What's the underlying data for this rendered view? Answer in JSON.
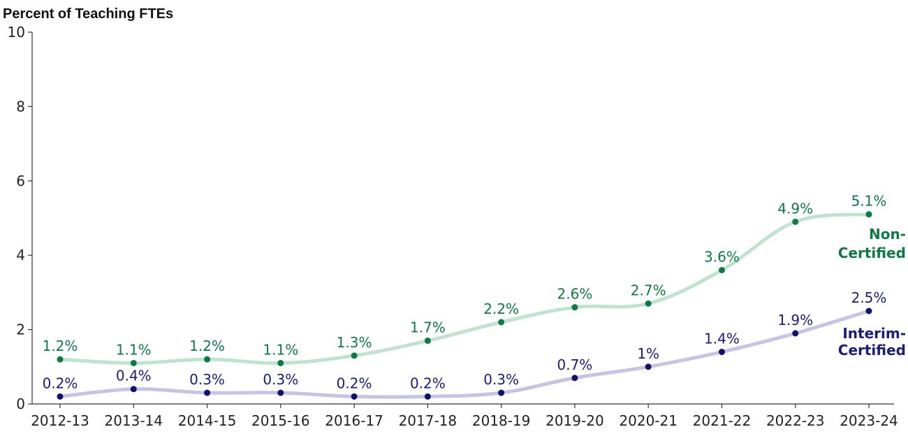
{
  "chart_data": {
    "type": "line",
    "title": "Percent of Teaching FTEs",
    "categories": [
      "2012-13",
      "2013-14",
      "2014-15",
      "2015-16",
      "2016-17",
      "2017-18",
      "2018-19",
      "2019-20",
      "2020-21",
      "2021-22",
      "2022-23",
      "2023-24"
    ],
    "ylim": [
      0,
      10
    ],
    "yticks": [
      "0",
      "2",
      "4",
      "6",
      "8",
      "10"
    ],
    "grid": false,
    "series": [
      {
        "name_lines": [
          "Non-",
          "Certified"
        ],
        "line_color": "#bfe3d0",
        "marker_color": "#0b7a45",
        "label_color": "#0b7a45",
        "values": [
          1.2,
          1.1,
          1.2,
          1.1,
          1.3,
          1.7,
          2.2,
          2.6,
          2.7,
          3.6,
          4.9,
          5.1
        ],
        "labels": [
          "1.2%",
          "1.1%",
          "1.2%",
          "1.1%",
          "1.3%",
          "1.7%",
          "2.2%",
          "2.6%",
          "2.7%",
          "3.6%",
          "4.9%",
          "5.1%"
        ]
      },
      {
        "name_lines": [
          "Interim-",
          "Certified"
        ],
        "line_color": "#c5c3e6",
        "marker_color": "#10106e",
        "label_color": "#1b1b7a",
        "values": [
          0.2,
          0.4,
          0.3,
          0.3,
          0.2,
          0.2,
          0.3,
          0.7,
          1.0,
          1.4,
          1.9,
          2.5
        ],
        "labels": [
          "0.2%",
          "0.4%",
          "0.3%",
          "0.3%",
          "0.2%",
          "0.2%",
          "0.3%",
          "0.7%",
          "1%",
          "1.4%",
          "1.9%",
          "2.5%"
        ]
      }
    ]
  }
}
